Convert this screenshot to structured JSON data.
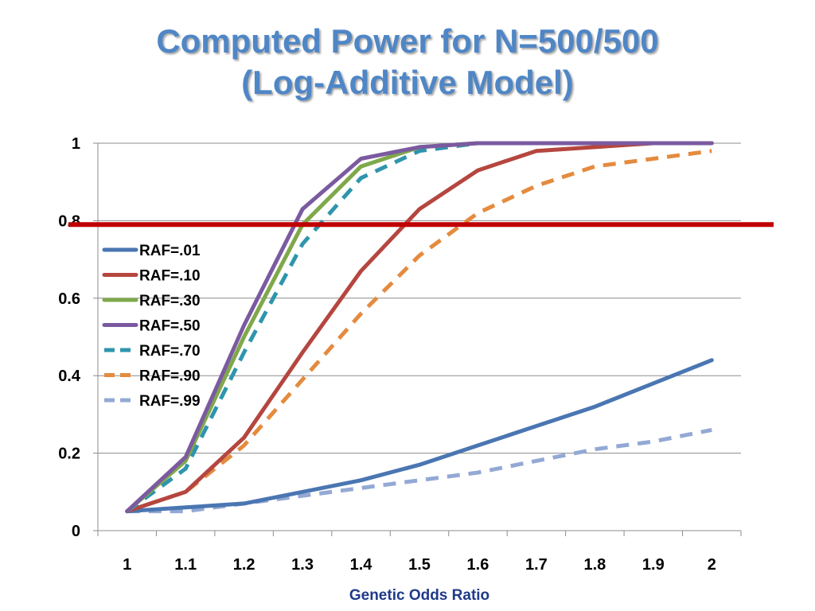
{
  "slide": {
    "title_line1": "Computed Power for N=500/500",
    "title_line2": "(Log-Additive Model)"
  },
  "chart_data": {
    "type": "line",
    "title": "",
    "xlabel": "Genetic Odds Ratio",
    "ylabel": "",
    "categories": [
      "1",
      "1.1",
      "1.2",
      "1.3",
      "1.4",
      "1.5",
      "1.6",
      "1.7",
      "1.8",
      "1.9",
      "2"
    ],
    "ylim": [
      0,
      1
    ],
    "yticks": [
      "0",
      "0.2",
      "0.4",
      "0.6",
      "0.8",
      "1"
    ],
    "grid": true,
    "legend_position": "left",
    "threshold_line": {
      "y": 0.79,
      "color": "#c00000"
    },
    "series": [
      {
        "name": "RAF=.01",
        "color": "#4a76b2",
        "dashed": false,
        "values": [
          0.05,
          0.06,
          0.07,
          0.1,
          0.13,
          0.17,
          0.22,
          0.27,
          0.32,
          0.38,
          0.44
        ]
      },
      {
        "name": "RAF=.10",
        "color": "#b5463f",
        "dashed": false,
        "values": [
          0.05,
          0.1,
          0.24,
          0.46,
          0.67,
          0.83,
          0.93,
          0.98,
          0.99,
          1.0,
          1.0
        ]
      },
      {
        "name": "RAF=.30",
        "color": "#7fa84b",
        "dashed": false,
        "values": [
          0.05,
          0.18,
          0.5,
          0.79,
          0.94,
          0.99,
          1.0,
          1.0,
          1.0,
          1.0,
          1.0
        ]
      },
      {
        "name": "RAF=.50",
        "color": "#7b5aa0",
        "dashed": false,
        "values": [
          0.05,
          0.19,
          0.53,
          0.83,
          0.96,
          0.99,
          1.0,
          1.0,
          1.0,
          1.0,
          1.0
        ]
      },
      {
        "name": "RAF=.70",
        "color": "#2e95ad",
        "dashed": true,
        "values": [
          0.05,
          0.16,
          0.46,
          0.74,
          0.91,
          0.98,
          1.0,
          1.0,
          1.0,
          1.0,
          1.0
        ]
      },
      {
        "name": "RAF=.90",
        "color": "#e48b3f",
        "dashed": true,
        "values": [
          0.05,
          0.1,
          0.22,
          0.39,
          0.56,
          0.71,
          0.82,
          0.89,
          0.94,
          0.96,
          0.98
        ]
      },
      {
        "name": "RAF=.99",
        "color": "#93a9d4",
        "dashed": true,
        "values": [
          0.05,
          0.05,
          0.07,
          0.09,
          0.11,
          0.13,
          0.15,
          0.18,
          0.21,
          0.23,
          0.26
        ]
      }
    ]
  }
}
